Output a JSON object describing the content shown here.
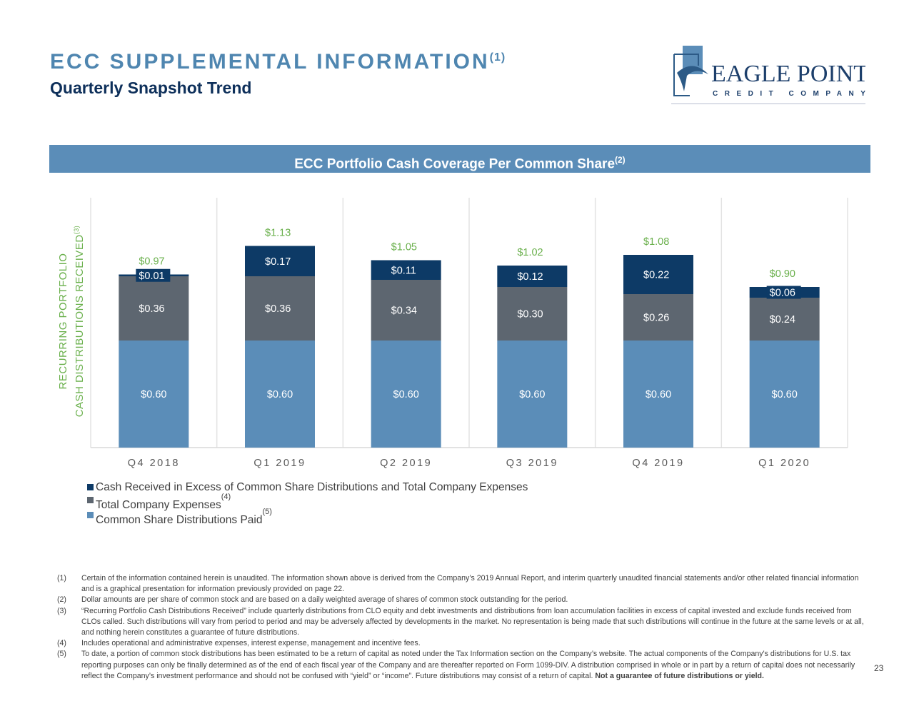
{
  "header": {
    "title": "ECC SUPPLEMENTAL INFORMATION",
    "title_note": "(1)",
    "subtitle": "Quarterly Snapshot Trend"
  },
  "logo": {
    "name": "EAGLE POINT",
    "tagline": "CREDIT COMPANY"
  },
  "banner": {
    "text": "ECC Portfolio Cash Coverage Per Common Share",
    "note": "(2)"
  },
  "colors": {
    "title": "#4f86b0",
    "distributions": "#5b8db8",
    "expenses": "#5d6670",
    "excess": "#0d3a66",
    "total_label": "#6ab04c"
  },
  "chart_data": {
    "type": "stacked-bar",
    "ylabel_line1": "RECURRING PORTFOLIO",
    "ylabel_line2": "CASH DISTRIBUTIONS RECEIVED",
    "ylabel_note": "(3)",
    "ylim": [
      0,
      1.4
    ],
    "grid": false,
    "legend_placement": "bottom-left",
    "categories": [
      "Q4 2018",
      "Q1 2019",
      "Q2 2019",
      "Q3 2019",
      "Q4 2019",
      "Q1 2020"
    ],
    "series": [
      {
        "name": "Common Share Distributions Paid",
        "note": "(5)",
        "values": [
          0.6,
          0.6,
          0.6,
          0.6,
          0.6,
          0.6
        ],
        "labels": [
          "$0.60",
          "$0.60",
          "$0.60",
          "$0.60",
          "$0.60",
          "$0.60"
        ]
      },
      {
        "name": "Total Company Expenses",
        "note": "(4)",
        "values": [
          0.36,
          0.36,
          0.34,
          0.3,
          0.26,
          0.24
        ],
        "labels": [
          "$0.36",
          "$0.36",
          "$0.34",
          "$0.30",
          "$0.26",
          "$0.24"
        ]
      },
      {
        "name": "Cash Received in Excess of Common Share Distributions and Total Company Expenses",
        "note": "",
        "values": [
          0.01,
          0.17,
          0.11,
          0.12,
          0.22,
          0.06
        ],
        "labels": [
          "$0.01",
          "$0.17",
          "$0.11",
          "$0.12",
          "$0.22",
          "$0.06"
        ]
      }
    ],
    "totals": [
      0.97,
      1.13,
      1.05,
      1.02,
      1.08,
      0.9
    ],
    "total_labels": [
      "$0.97",
      "$1.13",
      "$1.05",
      "$1.02",
      "$1.08",
      "$0.90"
    ]
  },
  "footnotes": [
    {
      "num": "(1)",
      "text": "Certain of the information contained herein is unaudited. The information shown above is derived from the Company’s 2019 Annual Report, and interim quarterly unaudited financial statements and/or other related financial information and is a graphical presentation for information previously provided on page 22."
    },
    {
      "num": "(2)",
      "text": "Dollar amounts are per share of common stock and are based on a daily weighted average of shares of common stock outstanding for the period."
    },
    {
      "num": "(3)",
      "text": "“Recurring Portfolio Cash Distributions Received” include quarterly distributions from CLO equity and debt investments and distributions from loan accumulation facilities in excess of capital invested and exclude funds received from CLOs called. Such distributions will vary from period to period and may be adversely affected by developments in the market.  No representation is being made that such distributions will continue in the future at the same levels or at all, and nothing herein constitutes a guarantee of future distributions."
    },
    {
      "num": "(4)",
      "text": "Includes operational and administrative expenses, interest expense, management and incentive fees."
    },
    {
      "num": "(5)",
      "text": "To date, a portion of common stock distributions has been estimated to be a return of capital as noted under the Tax Information section on the Company’s website. The actual components of the Company's distributions for U.S. tax reporting purposes can only be finally determined as of the end of each fiscal year of the Company and are thereafter reported on Form 1099-DIV. A distribution comprised in whole or in part by a return of capital does not necessarily reflect the Company’s investment performance and should not be confused with “yield” or “income”. Future distributions may consist of a return of capital.",
      "bold": "Not a guarantee of future distributions or yield."
    }
  ],
  "page_number": "23"
}
